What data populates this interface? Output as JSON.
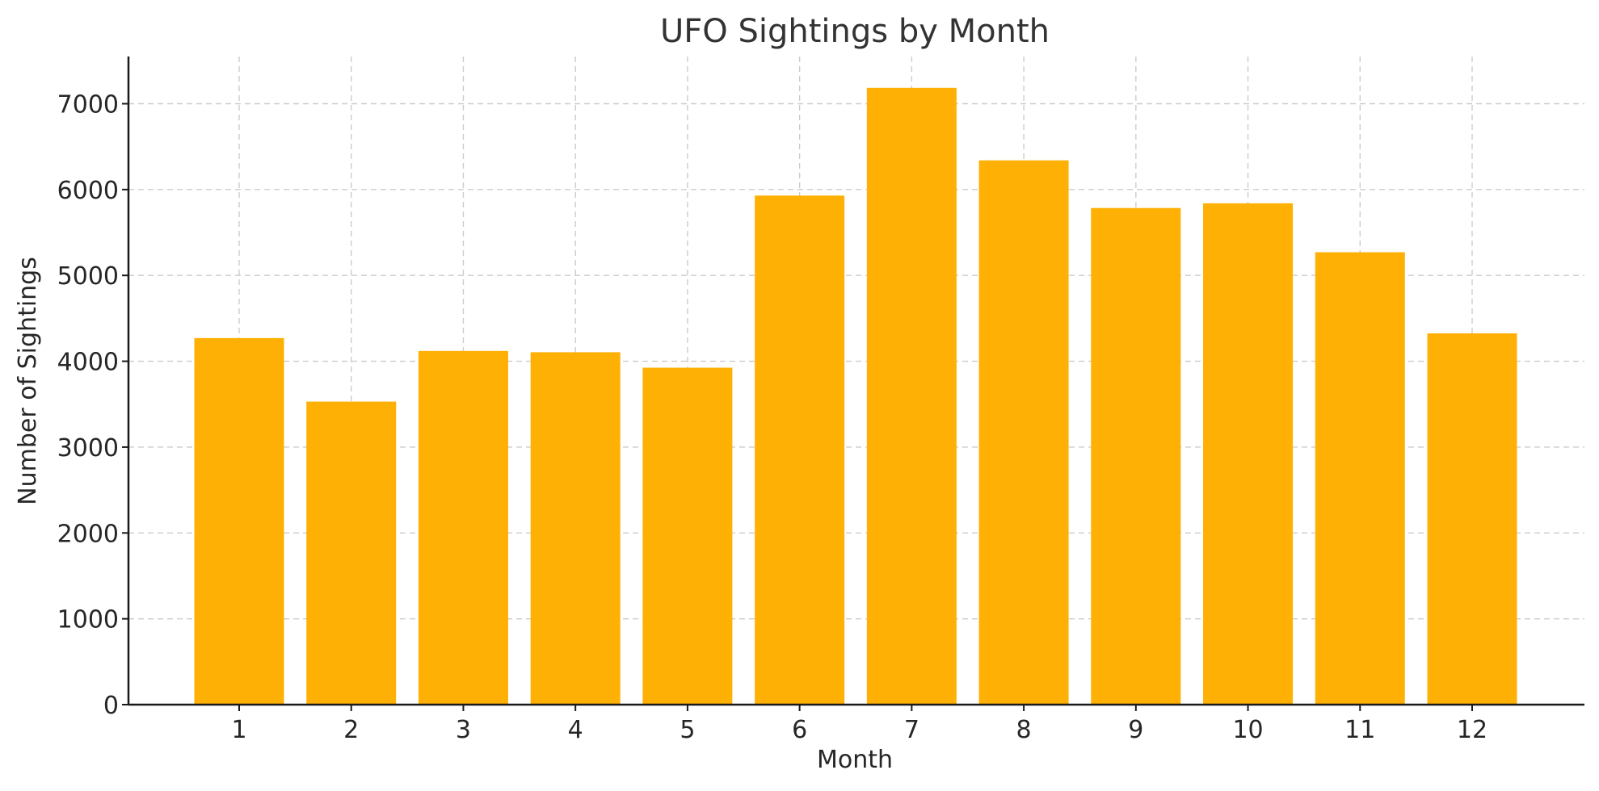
{
  "chart_data": {
    "type": "bar",
    "title": "UFO Sightings by Month",
    "xlabel": "Month",
    "ylabel": "Number of Sightings",
    "categories": [
      "1",
      "2",
      "3",
      "4",
      "5",
      "6",
      "7",
      "8",
      "9",
      "10",
      "11",
      "12"
    ],
    "values": [
      4270,
      3530,
      4120,
      4105,
      3925,
      5930,
      7185,
      6340,
      5785,
      5840,
      5270,
      4325
    ],
    "ylim": [
      0,
      7550
    ],
    "yticks": [
      0,
      1000,
      2000,
      3000,
      4000,
      5000,
      6000,
      7000
    ],
    "grid": true,
    "bar_color": "#ffb004"
  }
}
